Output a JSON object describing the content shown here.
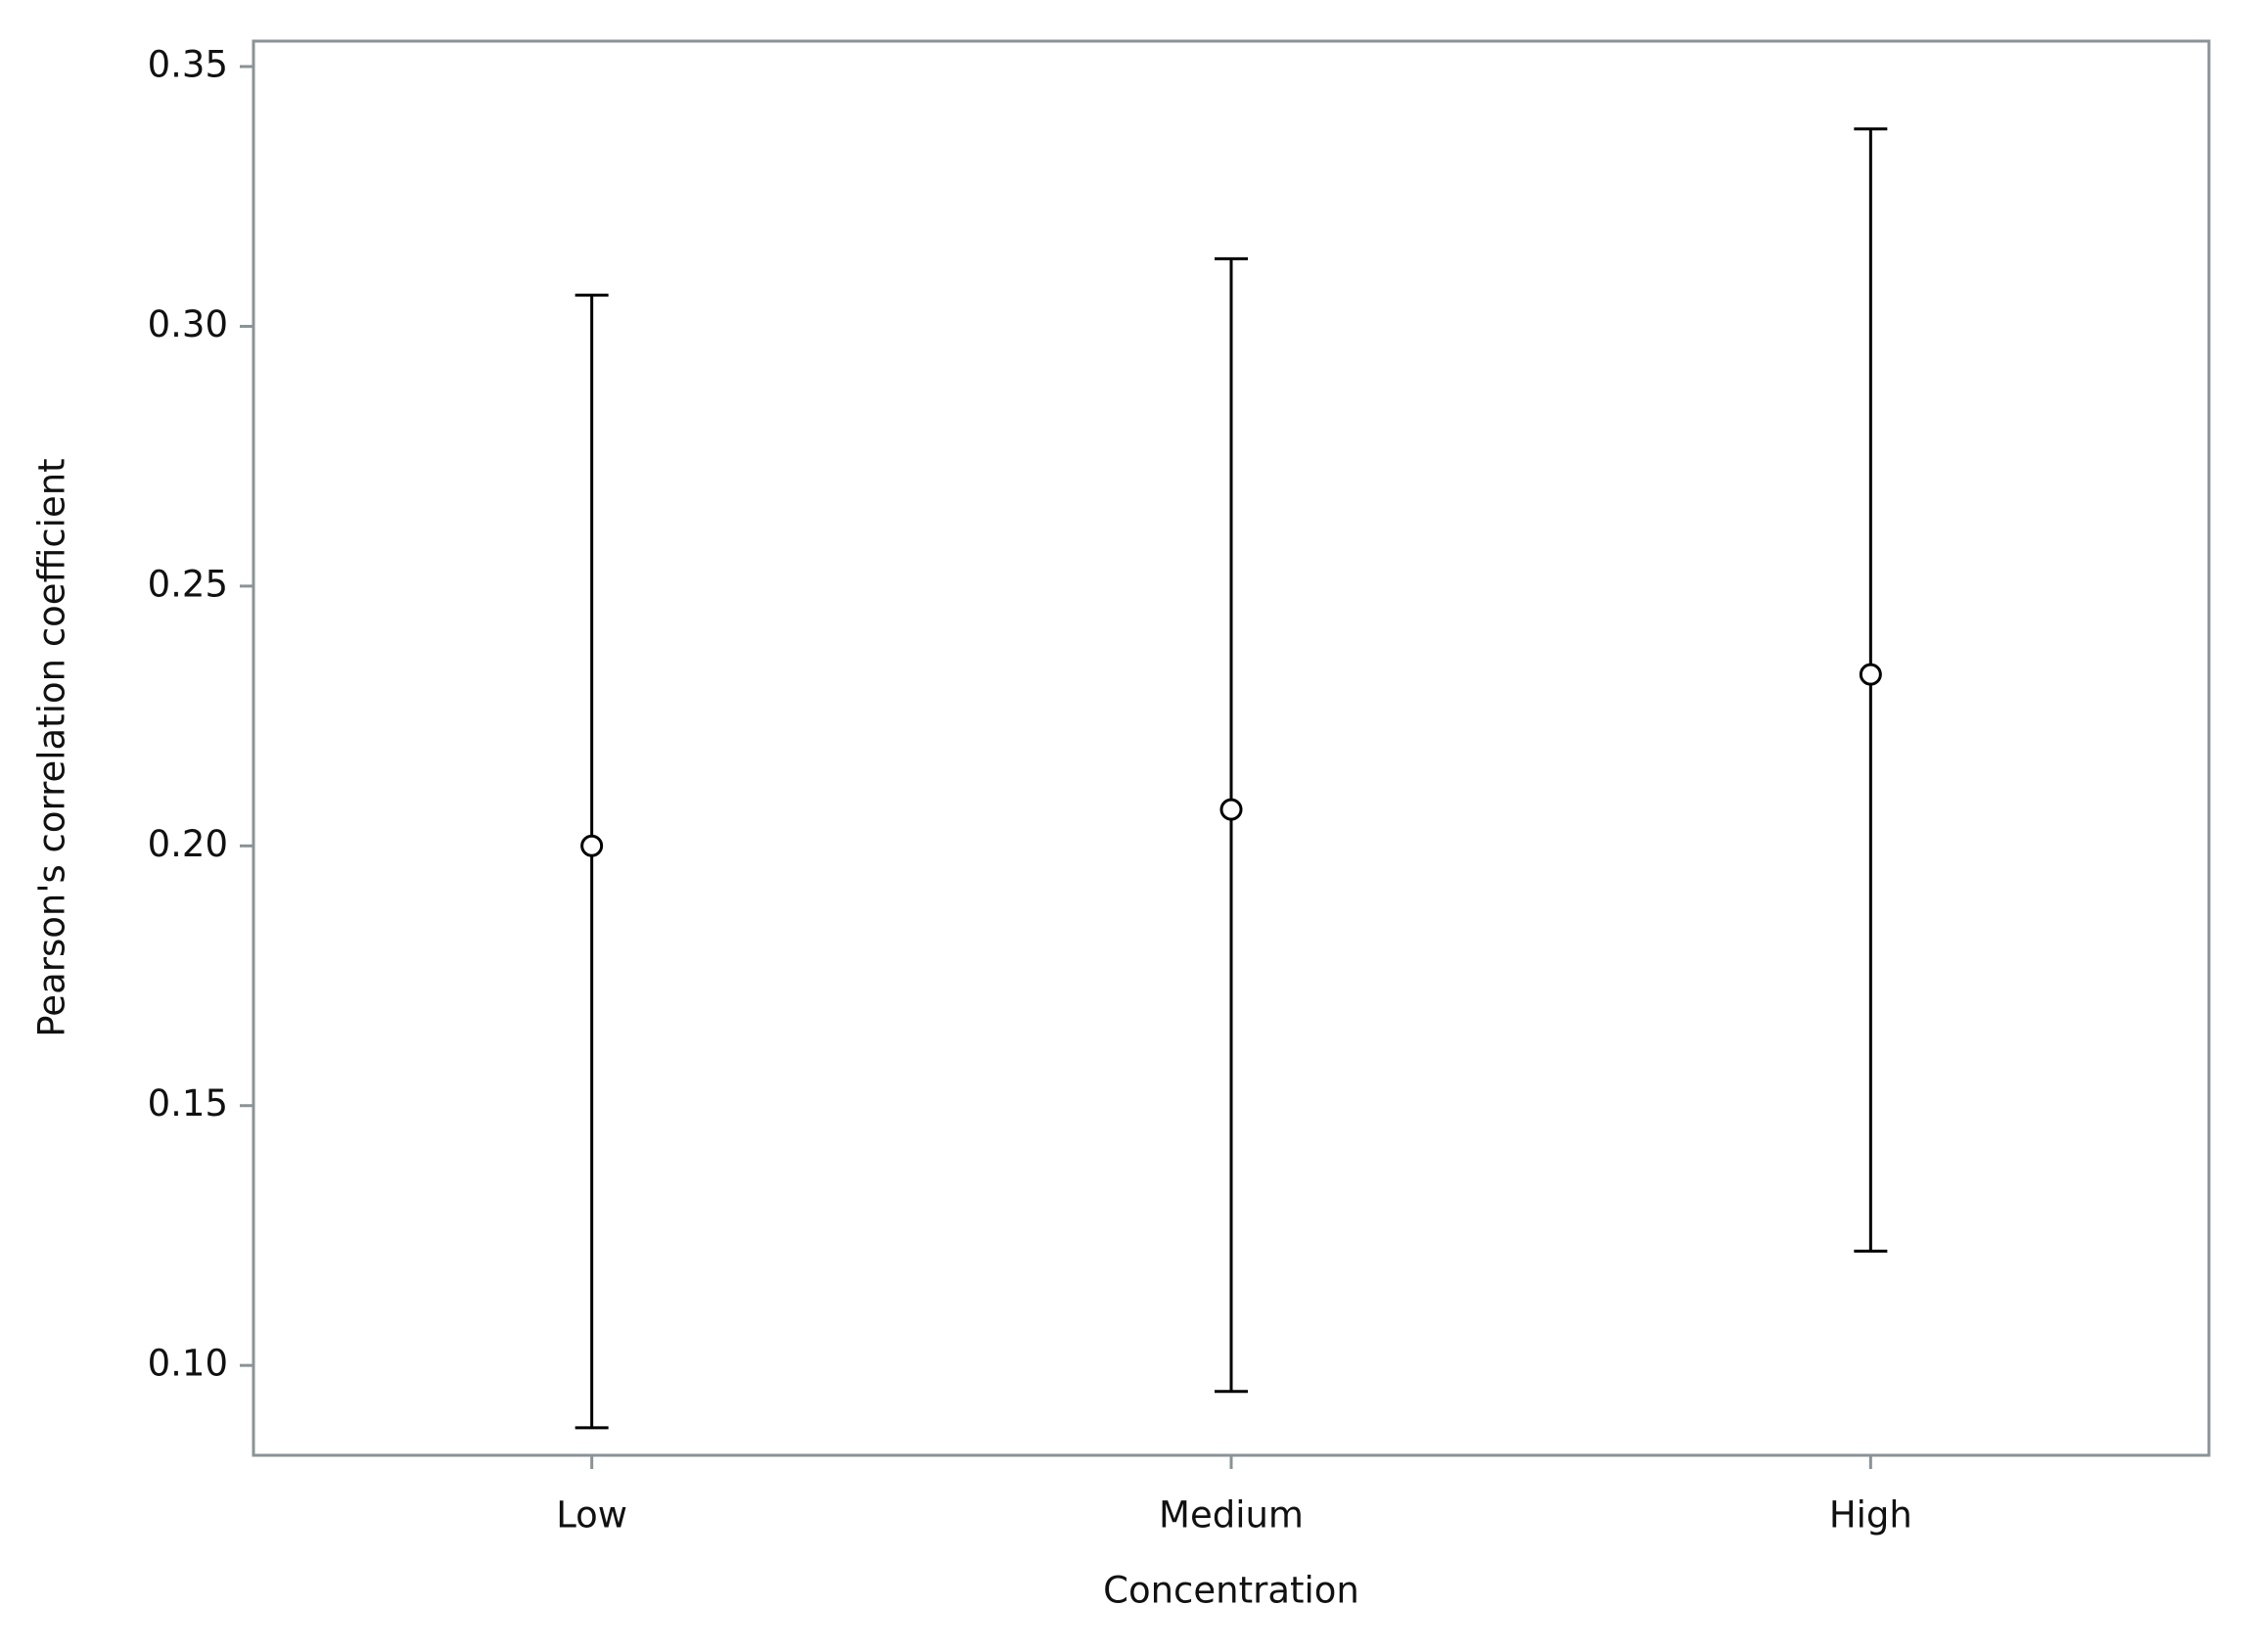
{
  "chart_data": {
    "type": "errorbar",
    "x_label": "Concentration",
    "y_label": "Pearson's correlation coefficient",
    "categories": [
      "Low",
      "Medium",
      "High"
    ],
    "values": [
      0.2,
      0.207,
      0.233
    ],
    "lower": [
      0.088,
      0.095,
      0.122
    ],
    "upper": [
      0.306,
      0.313,
      0.338
    ],
    "color": "#000000",
    "ylim": [
      0.0827,
      0.3549
    ],
    "yticks": [
      {
        "value": 0.1,
        "label": "0.10"
      },
      {
        "value": 0.15,
        "label": "0.15"
      },
      {
        "value": 0.2,
        "label": "0.20"
      },
      {
        "value": 0.25,
        "label": "0.25"
      },
      {
        "value": 0.3,
        "label": "0.30"
      },
      {
        "value": 0.35,
        "label": "0.35"
      }
    ],
    "grid": false
  }
}
